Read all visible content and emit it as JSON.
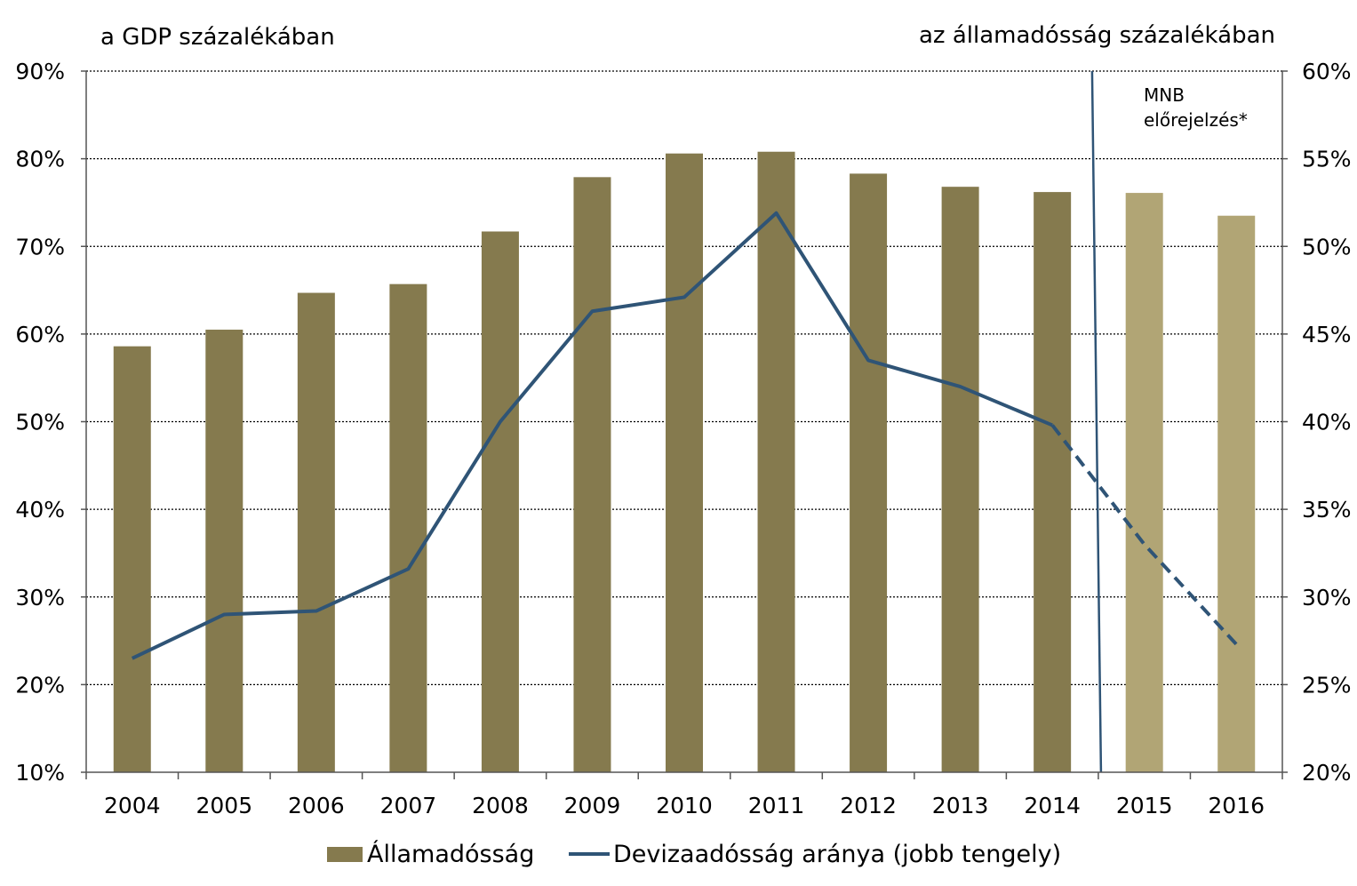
{
  "chart_data": {
    "type": "bar",
    "categories": [
      "2004",
      "2005",
      "2006",
      "2007",
      "2008",
      "2009",
      "2010",
      "2011",
      "2012",
      "2013",
      "2014",
      "2015",
      "2016"
    ],
    "left_axis_title": "a GDP százalékában",
    "right_axis_title": "az államadósság százalékában",
    "ylim_left": [
      10,
      90
    ],
    "ylim_right": [
      20,
      60
    ],
    "yticks_left": [
      "10%",
      "20%",
      "30%",
      "40%",
      "50%",
      "60%",
      "70%",
      "80%",
      "90%"
    ],
    "yticks_right": [
      "20%",
      "25%",
      "30%",
      "35%",
      "40%",
      "45%",
      "50%",
      "55%",
      "60%"
    ],
    "grid": "horizontal dotted",
    "legend_position": "bottom",
    "forecast_label": [
      "MNB",
      "előrejelzés*"
    ],
    "forecast_start": "2015",
    "series": [
      {
        "name": "Államadósság",
        "type": "bar",
        "axis": "left",
        "color": "#857a4e",
        "forecast_color": "#b1a575",
        "values": [
          58.6,
          60.5,
          64.7,
          65.7,
          71.7,
          77.9,
          80.6,
          80.8,
          78.3,
          76.8,
          76.2,
          76.1,
          73.5
        ]
      },
      {
        "name": "Devizaadósság aránya (jobb tengely)",
        "type": "line",
        "axis": "right",
        "color": "#2f5476",
        "values": [
          26.5,
          29.0,
          29.2,
          31.6,
          40.0,
          46.3,
          47.1,
          51.9,
          43.5,
          42.0,
          39.8,
          33.0,
          27.3
        ],
        "dashed_from": "2014"
      }
    ]
  }
}
